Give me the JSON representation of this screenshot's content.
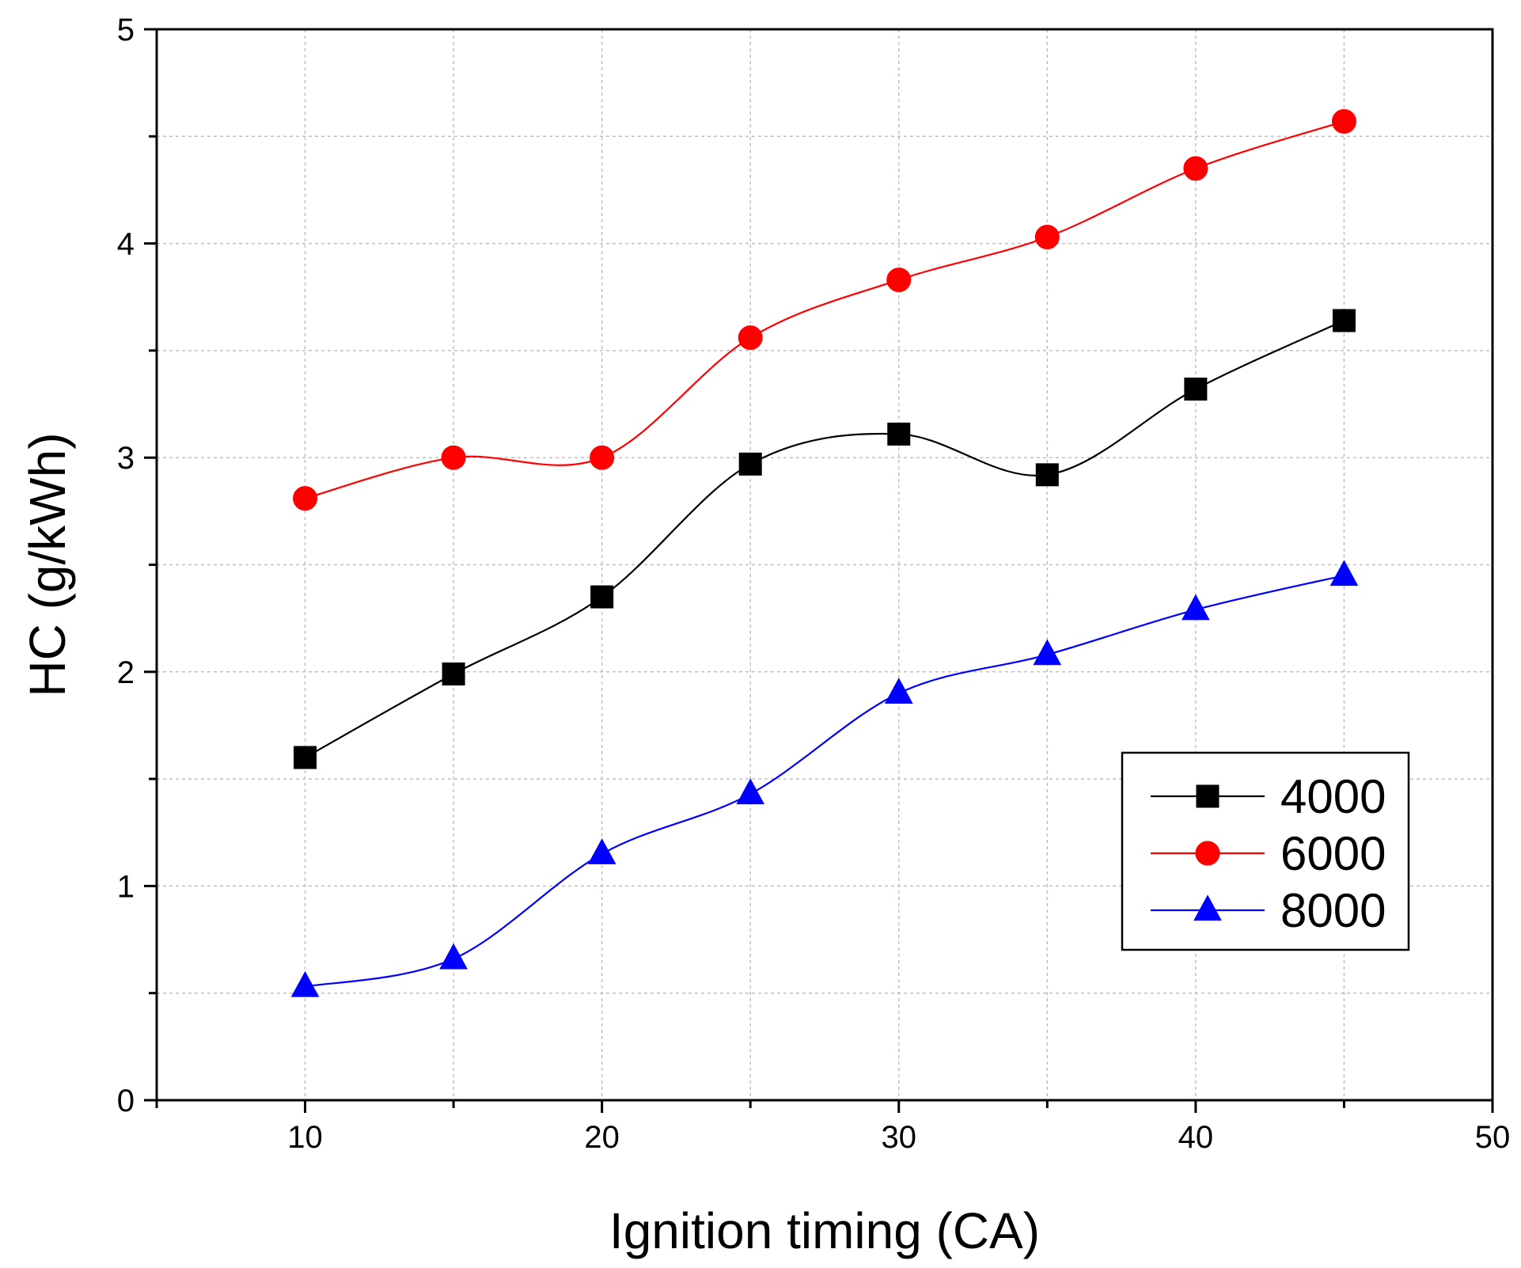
{
  "chart_data": {
    "type": "line",
    "title": "",
    "xlabel": "Ignition timing (CA)",
    "ylabel": "HC (g/kWh)",
    "xlim": [
      5,
      50
    ],
    "ylim": [
      0,
      5
    ],
    "xticks": [
      10,
      20,
      30,
      40,
      50
    ],
    "yticks": [
      0,
      1,
      2,
      3,
      4,
      5
    ],
    "grid": true,
    "legend_position": "lower-right",
    "x": [
      10,
      15,
      20,
      25,
      30,
      35,
      40,
      45
    ],
    "series": [
      {
        "name": "4000",
        "color": "#000000",
        "marker": "square",
        "values": [
          1.6,
          1.99,
          2.35,
          2.97,
          3.11,
          2.92,
          3.32,
          3.64
        ]
      },
      {
        "name": "6000",
        "color": "#ff0000",
        "marker": "circle",
        "values": [
          2.81,
          3.0,
          3.0,
          3.56,
          3.83,
          4.03,
          4.35,
          4.57
        ]
      },
      {
        "name": "8000",
        "color": "#0000ff",
        "marker": "triangle",
        "values": [
          0.53,
          0.66,
          1.15,
          1.43,
          1.9,
          2.08,
          2.29,
          2.45
        ]
      }
    ]
  }
}
